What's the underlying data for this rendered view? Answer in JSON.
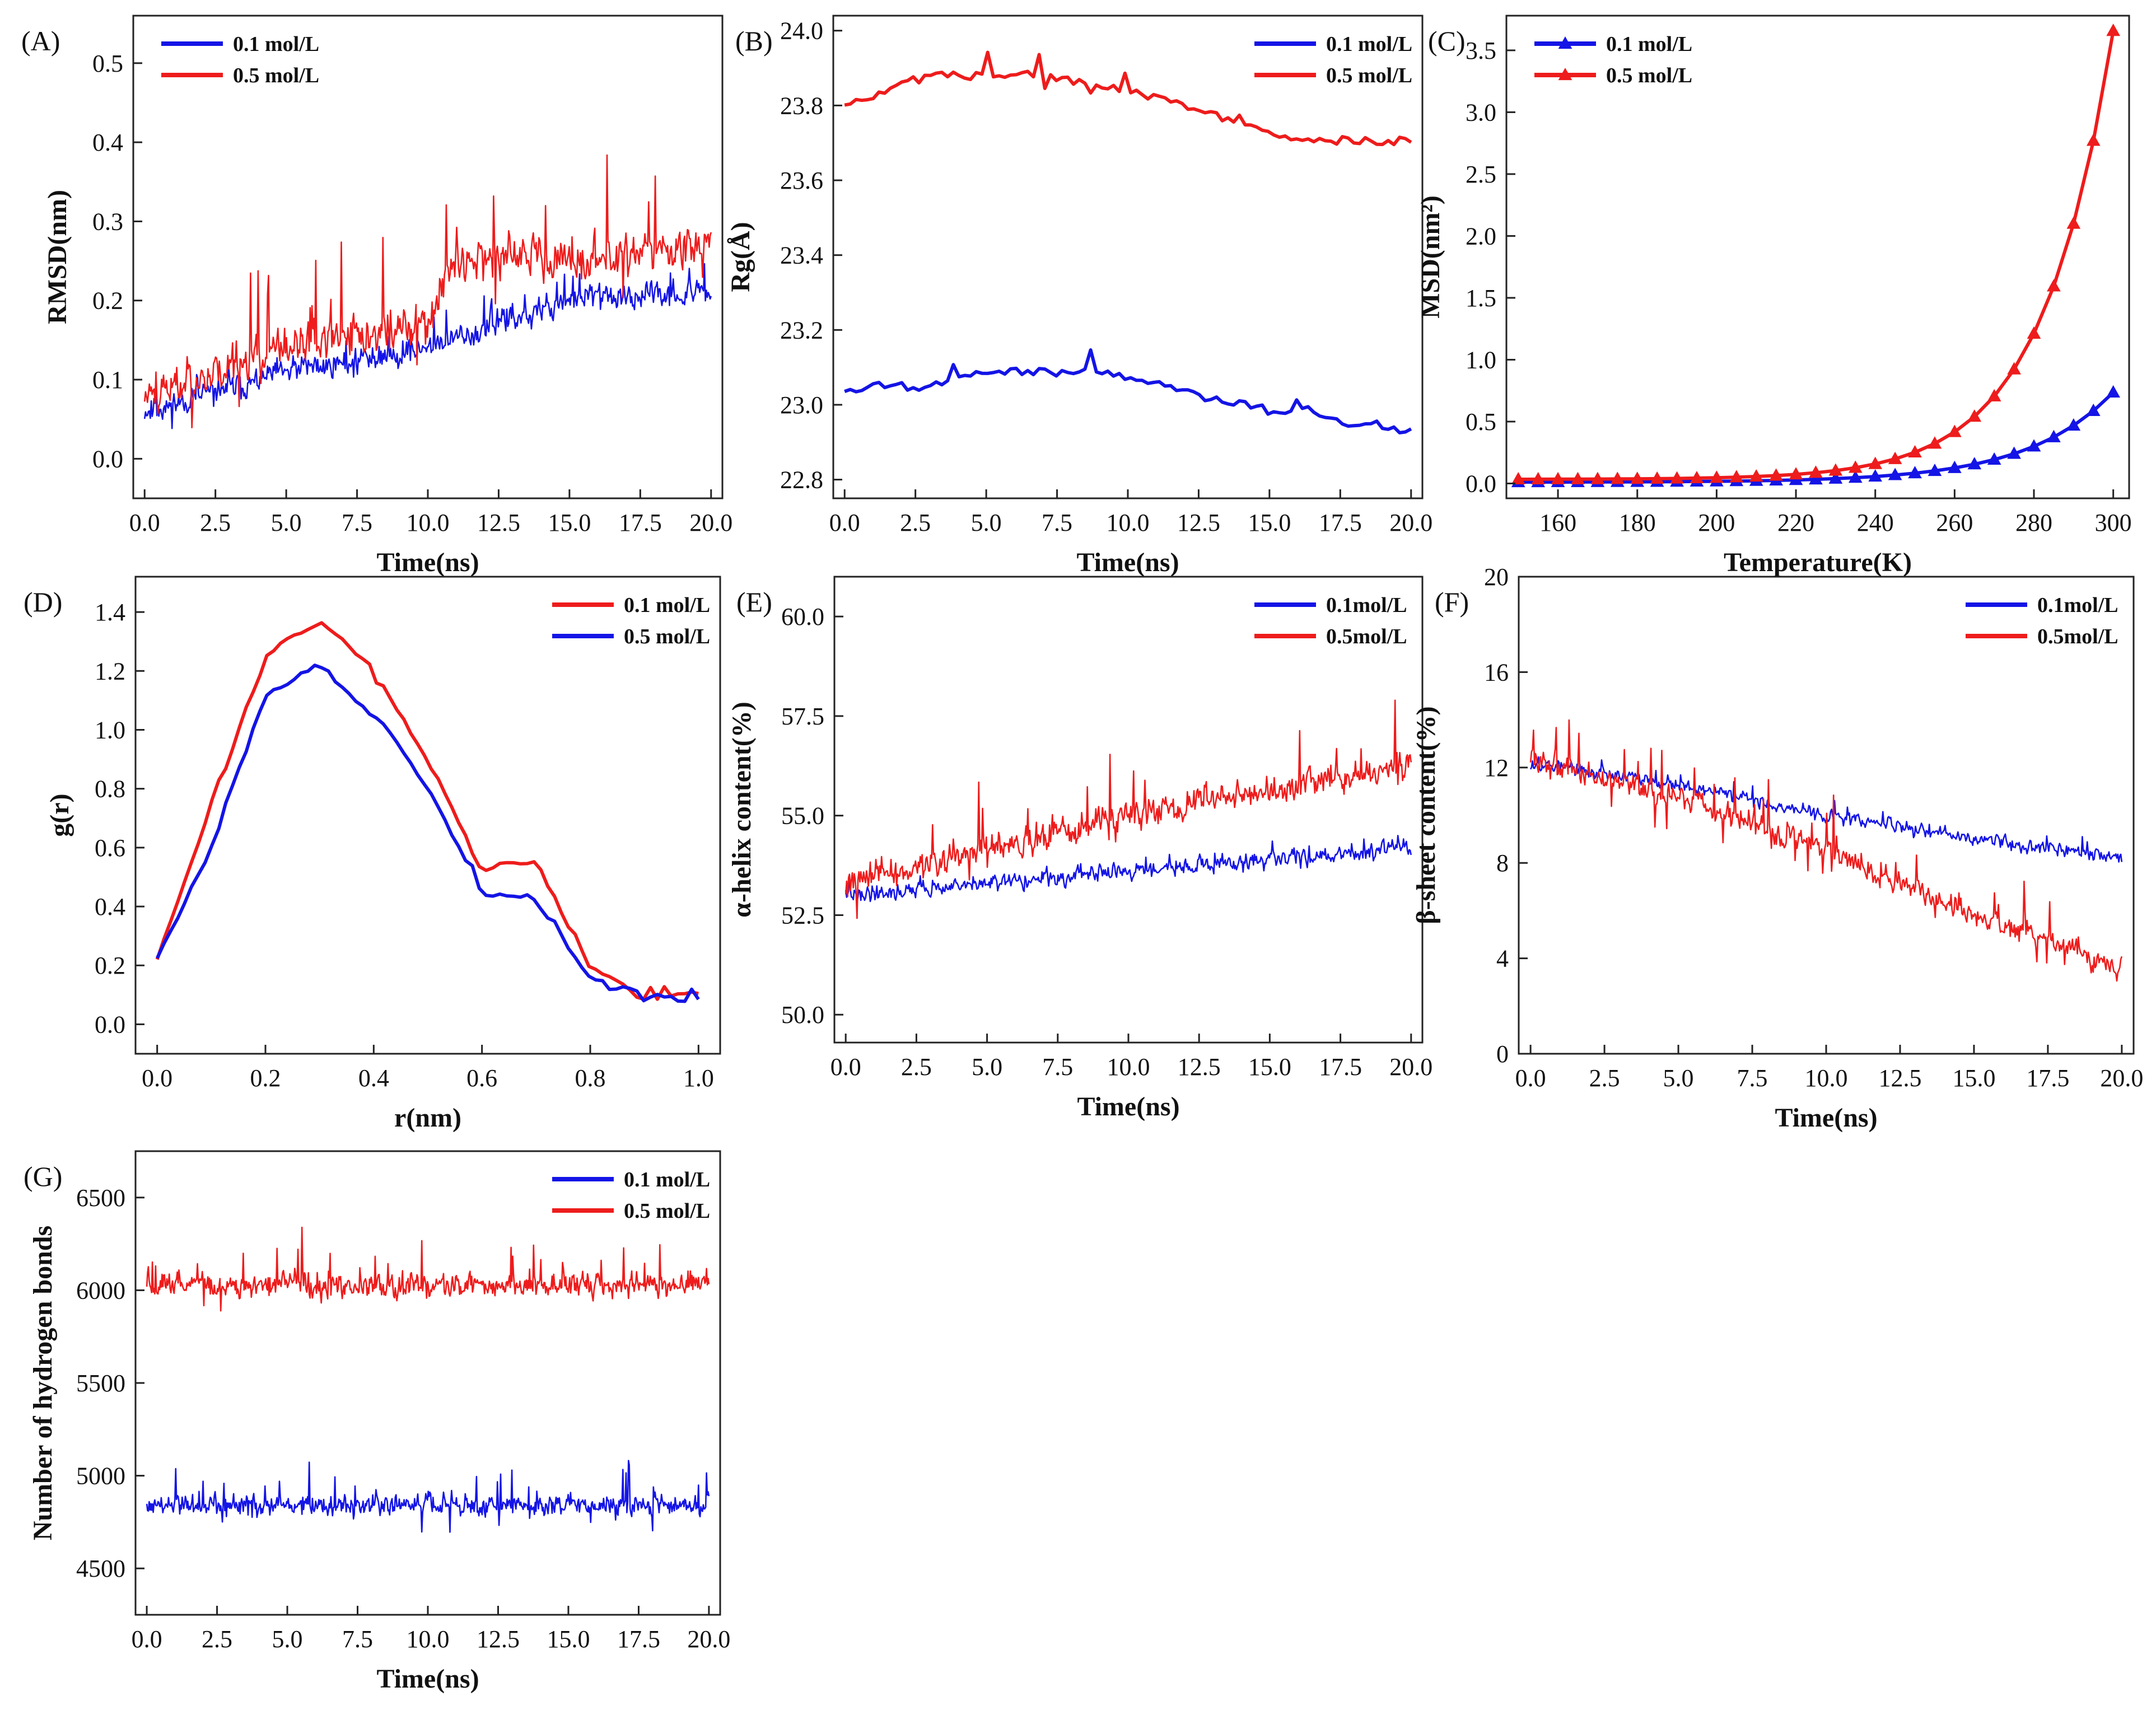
{
  "figure": {
    "colors": {
      "blue": "#1414e6",
      "red": "#ee1c1c",
      "axis": "#222222"
    }
  },
  "chart_data": [
    {
      "id": "A",
      "panel_label": "(A)",
      "type": "line",
      "xlabel": "Time(ns)",
      "ylabel": "RMSD(nm)",
      "xlim": [
        -0.4,
        20.4
      ],
      "ylim": [
        -0.05,
        0.56
      ],
      "xticks": [
        "0.0",
        "2.5",
        "5.0",
        "7.5",
        "10.0",
        "12.5",
        "15.0",
        "17.5",
        "20.0"
      ],
      "yticks": [
        "0.0",
        "0.1",
        "0.2",
        "0.3",
        "0.4",
        "0.5"
      ],
      "legend": {
        "position": "top-left"
      },
      "series": [
        {
          "name": "0.1 mol/L",
          "color": "#1414e6",
          "x": [
            0,
            20
          ],
          "points": 600,
          "seed": 11,
          "trend": [
            [
              0,
              0.06
            ],
            [
              5,
              0.11
            ],
            [
              10,
              0.14
            ],
            [
              15,
              0.2
            ],
            [
              20,
              0.21
            ]
          ],
          "noise": 0.035,
          "spike": 0.03
        },
        {
          "name": "0.5 mol/L",
          "color": "#ee1c1c",
          "x": [
            0,
            20
          ],
          "points": 600,
          "seed": 23,
          "trend": [
            [
              0,
              0.08
            ],
            [
              5,
              0.14
            ],
            [
              10,
              0.17
            ],
            [
              11,
              0.26
            ],
            [
              15,
              0.25
            ],
            [
              20,
              0.27
            ]
          ],
          "noise": 0.055,
          "spike": 0.09
        }
      ]
    },
    {
      "id": "B",
      "panel_label": "(B)",
      "type": "line",
      "xlabel": "Time(ns)",
      "ylabel": "Rg(Å)",
      "xlim": [
        -0.4,
        20.4
      ],
      "ylim": [
        22.75,
        24.04
      ],
      "xticks": [
        "0.0",
        "2.5",
        "5.0",
        "7.5",
        "10.0",
        "12.5",
        "15.0",
        "17.5",
        "20.0"
      ],
      "yticks": [
        "22.8",
        "23.0",
        "23.2",
        "23.4",
        "23.6",
        "23.8",
        "24.0"
      ],
      "legend": {
        "position": "top-right"
      },
      "series": [
        {
          "name": "0.1 mol/L",
          "color": "#1414e6",
          "x": [
            0,
            20
          ],
          "points": 100,
          "seed": 5,
          "trend": [
            [
              0,
              23.04
            ],
            [
              3,
              23.06
            ],
            [
              6,
              23.1
            ],
            [
              9,
              23.09
            ],
            [
              12,
              23.04
            ],
            [
              15,
              22.98
            ],
            [
              20,
              22.93
            ]
          ],
          "noise": 0.035,
          "spike": 0.05
        },
        {
          "name": "0.5 mol/L",
          "color": "#ee1c1c",
          "x": [
            0,
            20
          ],
          "points": 100,
          "seed": 9,
          "trend": [
            [
              0,
              23.8
            ],
            [
              3,
              23.88
            ],
            [
              7,
              23.89
            ],
            [
              10,
              23.84
            ],
            [
              13,
              23.78
            ],
            [
              16,
              23.71
            ],
            [
              20,
              23.7
            ]
          ],
          "noise": 0.035,
          "spike": 0.06
        }
      ]
    },
    {
      "id": "C",
      "panel_label": "(C)",
      "type": "line",
      "xlabel": "Temperature(K)",
      "ylabel": "MSD(nm²)",
      "xlim": [
        147,
        304
      ],
      "ylim": [
        -0.12,
        3.78
      ],
      "xticks": [
        "160",
        "180",
        "200",
        "220",
        "240",
        "260",
        "280",
        "300"
      ],
      "yticks": [
        "0.0",
        "0.5",
        "1.0",
        "1.5",
        "2.0",
        "2.5",
        "3.0",
        "3.5"
      ],
      "legend": {
        "position": "top-left"
      },
      "series": [
        {
          "name": "0.1 mol/L",
          "color": "#1414e6",
          "marker": "triangle",
          "x": [
            150,
            300
          ],
          "points": 31,
          "exp": {
            "a": 0.0055,
            "b": 0.2,
            "x0": 150,
            "k": 0.046
          }
        },
        {
          "name": "0.5 mol/L",
          "color": "#ee1c1c",
          "marker": "triangle",
          "x": [
            150,
            300
          ],
          "points": 31,
          "exp": {
            "a": 0.017,
            "b": 0.25,
            "x0": 150,
            "k": 0.0562
          }
        }
      ]
    },
    {
      "id": "D",
      "panel_label": "(D)",
      "type": "line",
      "xlabel": "r(nm)",
      "ylabel": "g(r)",
      "xlim": [
        -0.04,
        1.04
      ],
      "ylim": [
        -0.1,
        1.52
      ],
      "xticks": [
        "0.0",
        "0.2",
        "0.4",
        "0.6",
        "0.8",
        "1.0"
      ],
      "yticks": [
        "0.0",
        "0.2",
        "0.4",
        "0.6",
        "0.8",
        "1.0",
        "1.2",
        "1.4"
      ],
      "legend": {
        "position": "top-right"
      },
      "series": [
        {
          "name": "0.1 mol/L",
          "color": "#ee1c1c",
          "x": [
            0,
            1
          ],
          "points": 80,
          "seed": 17,
          "trend": [
            [
              0,
              0.22
            ],
            [
              0.1,
              0.75
            ],
            [
              0.2,
              1.25
            ],
            [
              0.3,
              1.38
            ],
            [
              0.4,
              1.2
            ],
            [
              0.5,
              0.9
            ],
            [
              0.6,
              0.52
            ],
            [
              0.7,
              0.55
            ],
            [
              0.8,
              0.2
            ],
            [
              0.9,
              0.08
            ],
            [
              1,
              0.1
            ]
          ],
          "noise": 0.03,
          "spike": 0.03
        },
        {
          "name": "0.5 mol/L",
          "color": "#1414e6",
          "x": [
            0,
            1
          ],
          "points": 80,
          "seed": 29,
          "trend": [
            [
              0,
              0.22
            ],
            [
              0.1,
              0.6
            ],
            [
              0.2,
              1.12
            ],
            [
              0.3,
              1.22
            ],
            [
              0.4,
              1.05
            ],
            [
              0.5,
              0.8
            ],
            [
              0.6,
              0.45
            ],
            [
              0.7,
              0.42
            ],
            [
              0.8,
              0.15
            ],
            [
              0.9,
              0.1
            ],
            [
              1,
              0.09
            ]
          ],
          "noise": 0.03,
          "spike": 0.03
        }
      ]
    },
    {
      "id": "E",
      "panel_label": "(E)",
      "type": "line",
      "xlabel": "Time(ns)",
      "ylabel": "α-helix content(%)",
      "xlim": [
        -0.4,
        20.4
      ],
      "ylim": [
        49.3,
        61.0
      ],
      "xticks": [
        "0.0",
        "2.5",
        "5.0",
        "7.5",
        "10.0",
        "12.5",
        "15.0",
        "17.5",
        "20.0"
      ],
      "yticks": [
        "50.0",
        "52.5",
        "55.0",
        "57.5",
        "60.0"
      ],
      "legend": {
        "position": "top-right"
      },
      "series": [
        {
          "name": "0.1mol/L",
          "color": "#1414e6",
          "x": [
            0,
            20
          ],
          "points": 600,
          "seed": 41,
          "trend": [
            [
              0,
              53.0
            ],
            [
              10,
              53.6
            ],
            [
              20,
              54.2
            ]
          ],
          "noise": 0.45,
          "spike": 0.25
        },
        {
          "name": "0.5mol/L",
          "color": "#ee1c1c",
          "x": [
            0,
            20
          ],
          "points": 600,
          "seed": 43,
          "trend": [
            [
              0,
              53.3
            ],
            [
              10,
              55.0
            ],
            [
              20,
              56.3
            ]
          ],
          "noise": 0.8,
          "spike": 1.2
        }
      ]
    },
    {
      "id": "F",
      "panel_label": "(F)",
      "type": "line",
      "xlabel": "Time(ns)",
      "ylabel": "β-sheet content(%)",
      "xlim": [
        -0.4,
        20.4
      ],
      "ylim": [
        0,
        20
      ],
      "xticks": [
        "0.0",
        "2.5",
        "5.0",
        "7.5",
        "10.0",
        "12.5",
        "15.0",
        "17.5",
        "20.0"
      ],
      "yticks": [
        "0",
        "4",
        "8",
        "12",
        "16",
        "20"
      ],
      "legend": {
        "position": "top-right"
      },
      "series": [
        {
          "name": "0.1mol/L",
          "color": "#1414e6",
          "x": [
            0,
            20
          ],
          "points": 600,
          "seed": 53,
          "trend": [
            [
              0,
              12.2
            ],
            [
              5,
              11.3
            ],
            [
              10,
              10.0
            ],
            [
              15,
              9.0
            ],
            [
              20,
              8.3
            ]
          ],
          "noise": 0.6,
          "spike": 0.5
        },
        {
          "name": "0.5mol/L",
          "color": "#ee1c1c",
          "x": [
            0,
            20
          ],
          "points": 600,
          "seed": 59,
          "trend": [
            [
              0,
              12.4
            ],
            [
              5,
              10.8
            ],
            [
              10,
              8.6
            ],
            [
              15,
              5.8
            ],
            [
              20,
              3.6
            ]
          ],
          "noise": 1.1,
          "spike": 1.8
        }
      ]
    },
    {
      "id": "G",
      "panel_label": "(G)",
      "type": "line",
      "xlabel": "Time(ns)",
      "ylabel": "Number of hydrogen bonds",
      "xlim": [
        -0.4,
        20.4
      ],
      "ylim": [
        4250,
        6750
      ],
      "xticks": [
        "0.0",
        "2.5",
        "5.0",
        "7.5",
        "10.0",
        "12.5",
        "15.0",
        "17.5",
        "20.0"
      ],
      "yticks": [
        "4500",
        "5000",
        "5500",
        "6000",
        "6500"
      ],
      "legend": {
        "position": "top-right"
      },
      "series": [
        {
          "name": "0.1 mol/L",
          "color": "#1414e6",
          "x": [
            0,
            20
          ],
          "points": 700,
          "seed": 61,
          "trend": [
            [
              0,
              4840
            ],
            [
              20,
              4840
            ]
          ],
          "noise": 120,
          "spike": 170
        },
        {
          "name": "0.5 mol/L",
          "color": "#ee1c1c",
          "x": [
            0,
            20
          ],
          "points": 700,
          "seed": 67,
          "trend": [
            [
              0,
              6030
            ],
            [
              20,
              6030
            ]
          ],
          "noise": 130,
          "spike": 200
        }
      ]
    }
  ]
}
